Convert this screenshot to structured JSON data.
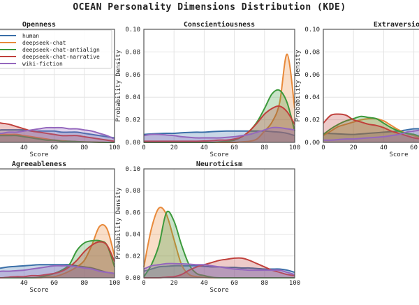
{
  "chart_data": {
    "type": "area",
    "title": "OCEAN Personality Dimensions Distribution (KDE)",
    "legend": {
      "placement": "top-left of first panel",
      "entries": [
        "human",
        "deepseek-chat",
        "deepseek-chat-antialign",
        "deepseek-chat-narrative",
        "wiki-fiction"
      ]
    },
    "series_colors": {
      "human": "#3a6fa8",
      "deepseek-chat": "#e8893a",
      "deepseek-chat-antialign": "#3c9a3c",
      "deepseek-chat-narrative": "#c0403c",
      "wiki-fiction": "#9467bd"
    },
    "xlabel": "Score",
    "ylabel": "Probability Density",
    "xlim": [
      0,
      100
    ],
    "ylim": [
      0,
      0.1
    ],
    "xticks": [
      "0",
      "20",
      "40",
      "60",
      "80",
      "100"
    ],
    "yticks": [
      "0.00",
      "0.02",
      "0.04",
      "0.06",
      "0.08",
      "0.10"
    ],
    "grid": true,
    "x": [
      0,
      5,
      10,
      15,
      20,
      25,
      30,
      35,
      40,
      45,
      50,
      55,
      60,
      65,
      70,
      75,
      80,
      85,
      90,
      95,
      100
    ],
    "panels": [
      {
        "title": "Openness",
        "series": {
          "human": [
            0.01,
            0.01,
            0.01,
            0.01,
            0.01,
            0.011,
            0.011,
            0.011,
            0.011,
            0.01,
            0.01,
            0.01,
            0.01,
            0.009,
            0.009,
            0.009,
            0.008,
            0.007,
            0.006,
            0.005,
            0.004
          ],
          "deepseek-chat": [
            0.005,
            0.006,
            0.007,
            0.007,
            0.007,
            0.007,
            0.007,
            0.007,
            0.006,
            0.005,
            0.004,
            0.003,
            0.002,
            0.0015,
            0.001,
            0.0007,
            0.0005,
            0.0003,
            0.0001,
            0,
            0
          ],
          "deepseek-chat-antialign": [
            0.004,
            0.005,
            0.006,
            0.006,
            0.006,
            0.006,
            0.006,
            0.006,
            0.005,
            0.004,
            0.003,
            0.002,
            0.002,
            0.001,
            0.001,
            0.0007,
            0.0004,
            0.0002,
            0.0001,
            0,
            0
          ],
          "deepseek-chat-narrative": [
            0.012,
            0.014,
            0.016,
            0.017,
            0.018,
            0.017,
            0.016,
            0.014,
            0.012,
            0.01,
            0.009,
            0.008,
            0.007,
            0.006,
            0.006,
            0.006,
            0.005,
            0.004,
            0.003,
            0.002,
            0.001
          ],
          "wiki-fiction": [
            0.006,
            0.007,
            0.008,
            0.008,
            0.008,
            0.008,
            0.009,
            0.009,
            0.01,
            0.011,
            0.012,
            0.013,
            0.013,
            0.013,
            0.012,
            0.012,
            0.011,
            0.01,
            0.008,
            0.006,
            0.003
          ]
        }
      },
      {
        "title": "Conscientiousness",
        "series": {
          "human": [
            0.007,
            0.0075,
            0.0078,
            0.008,
            0.008,
            0.0085,
            0.0088,
            0.009,
            0.009,
            0.0095,
            0.0098,
            0.01,
            0.01,
            0.01,
            0.01,
            0.01,
            0.01,
            0.0095,
            0.009,
            0.008,
            0.006
          ],
          "deepseek-chat": [
            0,
            0,
            0,
            0,
            0,
            0,
            0,
            0,
            0,
            0,
            0,
            0,
            0,
            0.0005,
            0.001,
            0.003,
            0.01,
            0.018,
            0.035,
            0.078,
            0.03
          ],
          "deepseek-chat-antialign": [
            0,
            0,
            0,
            0,
            0,
            0,
            0,
            0,
            0,
            0,
            0.0005,
            0.001,
            0.002,
            0.005,
            0.01,
            0.018,
            0.03,
            0.043,
            0.046,
            0.035,
            0.01
          ],
          "deepseek-chat-narrative": [
            0.001,
            0.001,
            0.001,
            0.001,
            0.001,
            0.001,
            0.001,
            0.001,
            0.0012,
            0.0015,
            0.002,
            0.002,
            0.003,
            0.005,
            0.01,
            0.017,
            0.025,
            0.03,
            0.032,
            0.027,
            0.016
          ],
          "wiki-fiction": [
            0.006,
            0.007,
            0.007,
            0.0065,
            0.006,
            0.005,
            0.0045,
            0.004,
            0.004,
            0.004,
            0.004,
            0.0045,
            0.005,
            0.006,
            0.007,
            0.009,
            0.011,
            0.013,
            0.013,
            0.012,
            0.011
          ]
        }
      },
      {
        "title": "Extraversion",
        "series": {
          "human": [
            0.008,
            0.0078,
            0.0075,
            0.0072,
            0.007,
            0.0075,
            0.008,
            0.0085,
            0.009,
            0.0095,
            0.01,
            0.011,
            0.012,
            0.012,
            0.012,
            0.011,
            0.01,
            0.009,
            0.008,
            0.006,
            0.004
          ],
          "deepseek-chat": [
            0.006,
            0.01,
            0.014,
            0.016,
            0.018,
            0.02,
            0.021,
            0.021,
            0.019,
            0.015,
            0.011,
            0.008,
            0.006,
            0.004,
            0.003,
            0.002,
            0.001,
            0.0005,
            0.0003,
            0.0001,
            0
          ],
          "deepseek-chat-antialign": [
            0.007,
            0.012,
            0.016,
            0.019,
            0.021,
            0.023,
            0.022,
            0.021,
            0.017,
            0.013,
            0.01,
            0.008,
            0.007,
            0.005,
            0.004,
            0.003,
            0.002,
            0.001,
            0.0005,
            0.0002,
            0
          ],
          "deepseek-chat-narrative": [
            0.017,
            0.024,
            0.025,
            0.024,
            0.02,
            0.018,
            0.016,
            0.015,
            0.013,
            0.01,
            0.008,
            0.006,
            0.004,
            0.003,
            0.002,
            0.0015,
            0.001,
            0.0007,
            0.0004,
            0.0002,
            0.0001
          ],
          "wiki-fiction": [
            0.002,
            0.002,
            0.0025,
            0.003,
            0.003,
            0.0035,
            0.004,
            0.0045,
            0.005,
            0.006,
            0.007,
            0.009,
            0.01,
            0.011,
            0.012,
            0.012,
            0.011,
            0.01,
            0.009,
            0.007,
            0.005
          ]
        }
      },
      {
        "title": "Agreeableness",
        "series": {
          "human": [
            0.006,
            0.007,
            0.007,
            0.0075,
            0.008,
            0.009,
            0.01,
            0.0105,
            0.011,
            0.0115,
            0.012,
            0.012,
            0.012,
            0.012,
            0.012,
            0.011,
            0.01,
            0.009,
            0.007,
            0.005,
            0.004
          ],
          "deepseek-chat": [
            0,
            0,
            0,
            0,
            0,
            0,
            0,
            0,
            0,
            0,
            0,
            0.0005,
            0.001,
            0.003,
            0.006,
            0.01,
            0.016,
            0.03,
            0.047,
            0.045,
            0.02
          ],
          "deepseek-chat-antialign": [
            0,
            0,
            0,
            0,
            0,
            0,
            0,
            0,
            0,
            0,
            0.0005,
            0.002,
            0.004,
            0.007,
            0.012,
            0.025,
            0.032,
            0.034,
            0.034,
            0.03,
            0.01
          ],
          "deepseek-chat-narrative": [
            0,
            0,
            0,
            0,
            0,
            0,
            0.0005,
            0.001,
            0.001,
            0.002,
            0.002,
            0.003,
            0.004,
            0.006,
            0.01,
            0.016,
            0.024,
            0.03,
            0.033,
            0.03,
            0.015
          ],
          "wiki-fiction": [
            0.004,
            0.004,
            0.0045,
            0.005,
            0.005,
            0.006,
            0.006,
            0.0065,
            0.007,
            0.008,
            0.009,
            0.01,
            0.011,
            0.011,
            0.011,
            0.01,
            0.009,
            0.008,
            0.006,
            0.005,
            0.004
          ]
        }
      },
      {
        "title": "Neuroticism",
        "series": {
          "human": [
            0.006,
            0.008,
            0.01,
            0.0105,
            0.011,
            0.011,
            0.011,
            0.011,
            0.0105,
            0.01,
            0.01,
            0.0095,
            0.0095,
            0.009,
            0.009,
            0.0085,
            0.008,
            0.008,
            0.008,
            0.007,
            0.005
          ],
          "deepseek-chat": [
            0.01,
            0.045,
            0.064,
            0.058,
            0.035,
            0.012,
            0.003,
            0.001,
            0.0003,
            0,
            0,
            0,
            0,
            0,
            0,
            0,
            0,
            0,
            0,
            0,
            0
          ],
          "deepseek-chat-antialign": [
            0.001,
            0.012,
            0.03,
            0.06,
            0.052,
            0.03,
            0.012,
            0.004,
            0.002,
            0.0005,
            0,
            0,
            0,
            0,
            0,
            0,
            0,
            0,
            0,
            0,
            0
          ],
          "deepseek-chat-narrative": [
            0,
            0,
            0,
            0.0005,
            0.001,
            0.003,
            0.007,
            0.01,
            0.012,
            0.014,
            0.016,
            0.017,
            0.018,
            0.018,
            0.016,
            0.013,
            0.01,
            0.007,
            0.005,
            0.003,
            0.002
          ],
          "wiki-fiction": [
            0.008,
            0.011,
            0.012,
            0.013,
            0.013,
            0.0128,
            0.0125,
            0.012,
            0.012,
            0.011,
            0.01,
            0.009,
            0.008,
            0.0075,
            0.007,
            0.007,
            0.007,
            0.007,
            0.007,
            0.005,
            0.003
          ]
        }
      }
    ]
  }
}
